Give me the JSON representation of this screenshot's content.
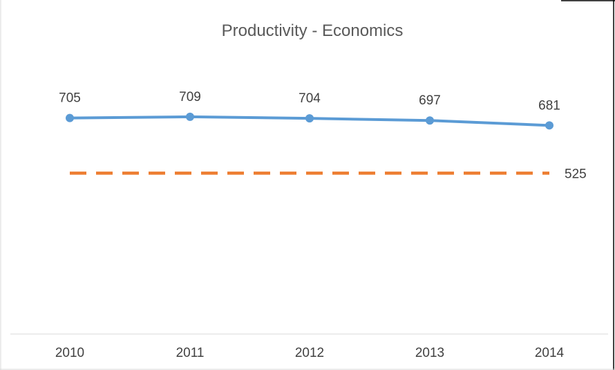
{
  "chart_data": {
    "type": "line",
    "title": "Productivity - Economics",
    "categories": [
      "2010",
      "2011",
      "2012",
      "2013",
      "2014"
    ],
    "series": [
      {
        "values": [
          705,
          709,
          704,
          697,
          681
        ],
        "color": "#5B9BD5",
        "style": "solid",
        "markers": true,
        "data_labels": true
      },
      {
        "values": [
          525,
          525,
          525,
          525,
          525
        ],
        "color": "#ED7D31",
        "style": "dashed",
        "markers": false,
        "data_labels": "last"
      }
    ],
    "xlabel": "",
    "ylabel": "",
    "ylim": [
      0,
      1000
    ],
    "grid": false,
    "legend": "none"
  }
}
